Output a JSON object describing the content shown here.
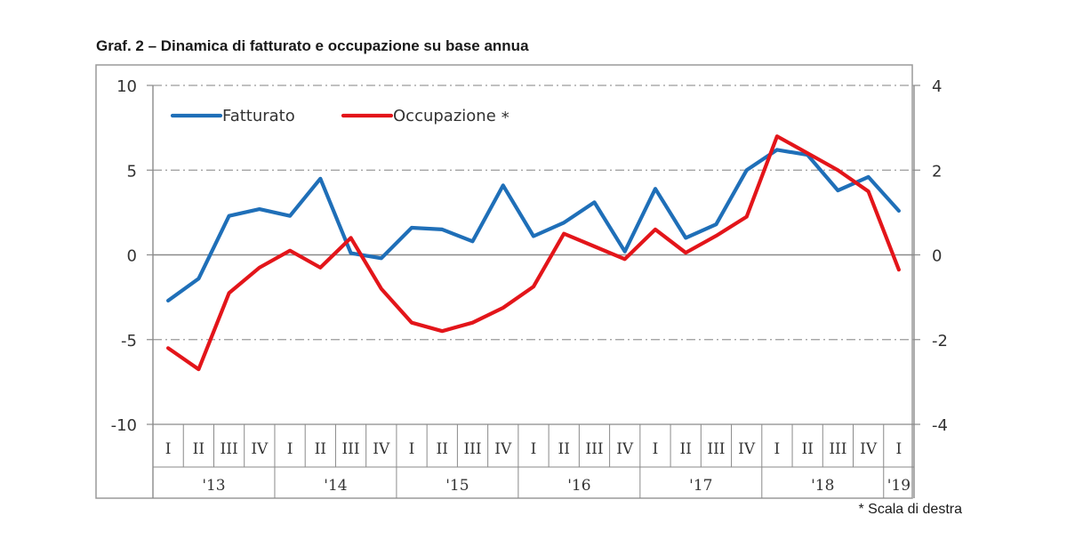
{
  "title": "Graf. 2 – Dinamica di fatturato e occupazione su base annua",
  "footnote": "* Scala di destra",
  "chart_data": {
    "type": "line",
    "title": "Graf. 2 – Dinamica di fatturato e occupazione su base annua",
    "quarters": [
      "I",
      "II",
      "III",
      "IV",
      "I",
      "II",
      "III",
      "IV",
      "I",
      "II",
      "III",
      "IV",
      "I",
      "II",
      "III",
      "IV",
      "I",
      "II",
      "III",
      "IV",
      "I",
      "II",
      "III",
      "IV",
      "I"
    ],
    "years": [
      {
        "label": "'13",
        "quarters": 4
      },
      {
        "label": "'14",
        "quarters": 4
      },
      {
        "label": "'15",
        "quarters": 4
      },
      {
        "label": "'16",
        "quarters": 4
      },
      {
        "label": "'17",
        "quarters": 4
      },
      {
        "label": "'18",
        "quarters": 4
      },
      {
        "label": "'19",
        "quarters": 1
      }
    ],
    "left_axis": {
      "ylim": [
        -10,
        10
      ],
      "ticks": [
        10,
        5,
        0,
        -5,
        -10
      ]
    },
    "right_axis": {
      "ylim": [
        -4,
        4
      ],
      "ticks": [
        4,
        2,
        0,
        -2,
        -4
      ]
    },
    "grid": "dash-dot horizontal",
    "legend_position": "top-left",
    "series": [
      {
        "name": "Fatturato",
        "axis": "left",
        "color": "#1f6fb8",
        "values": [
          -2.7,
          -1.4,
          2.3,
          2.7,
          2.3,
          4.5,
          0.1,
          -0.2,
          1.6,
          1.5,
          0.8,
          4.1,
          1.1,
          1.9,
          3.1,
          0.2,
          3.9,
          1.0,
          1.8,
          5.0,
          6.2,
          5.9,
          3.8,
          4.6,
          2.6
        ]
      },
      {
        "name": "Occupazione",
        "legend_mark": "*",
        "axis": "right",
        "color": "#e3151a",
        "values": [
          -2.2,
          -2.7,
          -0.9,
          -0.3,
          0.1,
          -0.3,
          0.4,
          -0.8,
          -1.6,
          -1.8,
          -1.6,
          -1.25,
          -0.75,
          0.5,
          0.2,
          -0.1,
          0.6,
          0.05,
          0.45,
          0.9,
          2.8,
          2.4,
          2.0,
          1.5,
          -0.35
        ]
      }
    ]
  }
}
